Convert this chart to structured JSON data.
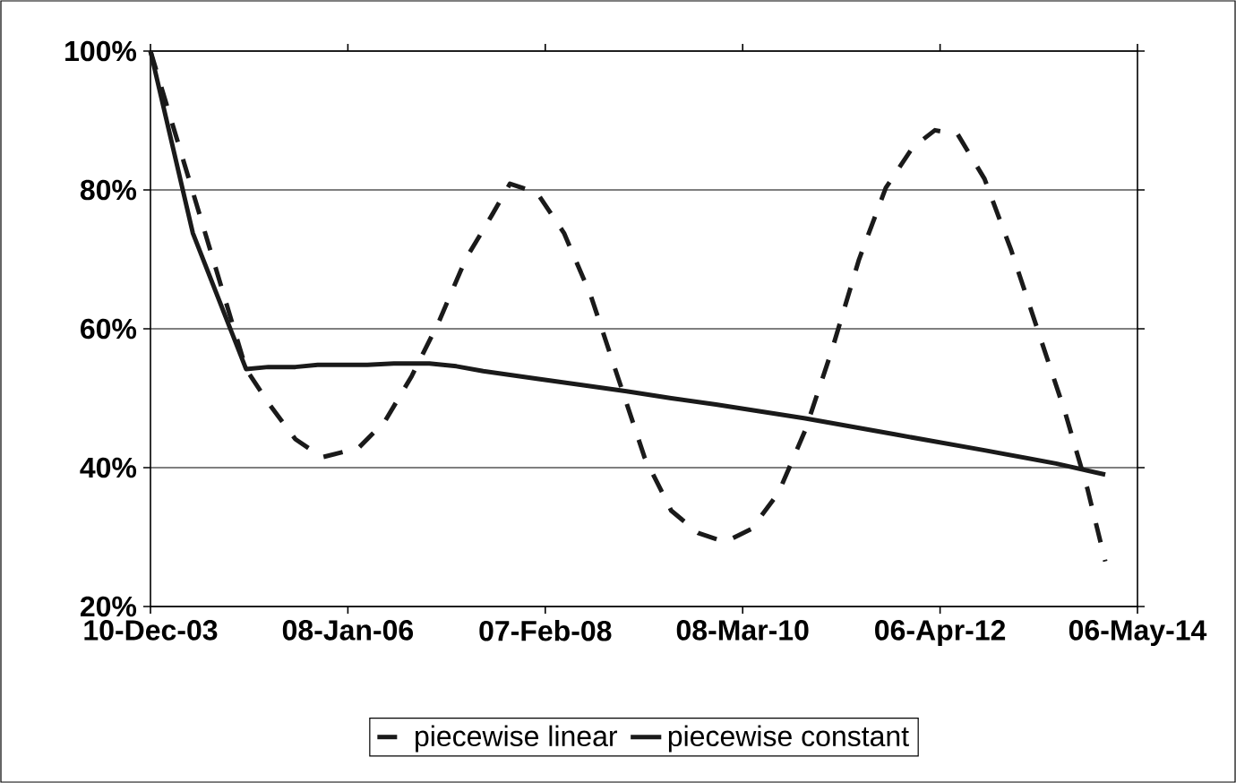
{
  "chart_data": {
    "type": "line",
    "xlim": [
      "2003-12-10",
      "2014-05-06"
    ],
    "ylim": [
      20,
      100
    ],
    "xticks": [
      {
        "value": "2003-12-10",
        "label": "10-Dec-03"
      },
      {
        "value": "2006-01-08",
        "label": "08-Jan-06"
      },
      {
        "value": "2008-02-07",
        "label": "07-Feb-08"
      },
      {
        "value": "2010-03-08",
        "label": "08-Mar-10"
      },
      {
        "value": "2012-04-06",
        "label": "06-Apr-12"
      },
      {
        "value": "2014-05-06",
        "label": "06-May-14"
      }
    ],
    "yticks": [
      {
        "value": 20,
        "label": "20%"
      },
      {
        "value": 40,
        "label": "40%"
      },
      {
        "value": 60,
        "label": "60%"
      },
      {
        "value": 80,
        "label": "80%"
      },
      {
        "value": 100,
        "label": "100%"
      }
    ],
    "grid": "y",
    "legend": "bottom",
    "series": [
      {
        "name": "piecewise linear",
        "color": "#1a1a1a",
        "line_style": "dashed",
        "x": [
          "2003-12-10",
          "2004-12-12",
          "2005-03-08",
          "2005-06-20",
          "2005-10-01",
          "2006-02-17",
          "2006-05-31",
          "2006-09-11",
          "2006-12-23",
          "2007-04-06",
          "2007-07-17",
          "2007-09-24",
          "2008-01-06",
          "2008-04-19",
          "2008-07-31",
          "2008-11-11",
          "2009-02-23",
          "2009-06-06",
          "2009-09-17",
          "2009-12-30",
          "2010-04-12",
          "2010-07-24",
          "2010-11-04",
          "2011-02-15",
          "2011-05-30",
          "2011-09-10",
          "2011-12-22",
          "2012-03-17",
          "2012-06-13",
          "2012-09-24",
          "2013-01-05",
          "2013-04-18",
          "2013-07-31",
          "2013-10-25",
          "2014-01-02"
        ],
        "values": [
          100,
          54.2,
          49.3,
          44.1,
          41.5,
          42.8,
          46.7,
          53.2,
          60.9,
          70,
          76.4,
          80.9,
          79.6,
          73.8,
          64.8,
          53.2,
          41.5,
          33.8,
          30.6,
          29.3,
          31.2,
          36.4,
          45.4,
          57,
          70,
          80.3,
          86.1,
          88.6,
          88,
          81.6,
          71.3,
          59.7,
          48,
          37,
          26.5
        ]
      },
      {
        "name": "piecewise constant",
        "color": "#1a1a1a",
        "line_style": "solid",
        "x": [
          "2003-12-10",
          "2004-05-21",
          "2004-12-12",
          "2005-03-08",
          "2005-06-20",
          "2005-09-14",
          "2006-03-24",
          "2006-07-04",
          "2006-11-18",
          "2007-03-02",
          "2007-06-13",
          "2008-01-06",
          "2008-06-27",
          "2008-12-16",
          "2009-06-06",
          "2009-11-25",
          "2010-05-16",
          "2010-11-04",
          "2011-10-14",
          "2012-09-24",
          "2013-06-26",
          "2014-01-02"
        ],
        "values": [
          100,
          73.8,
          54.2,
          54.5,
          54.5,
          54.8,
          54.8,
          55,
          55,
          54.6,
          53.9,
          52.8,
          51.9,
          51,
          50,
          49.1,
          48.1,
          47.1,
          44.8,
          42.5,
          40.6,
          39
        ]
      }
    ]
  }
}
